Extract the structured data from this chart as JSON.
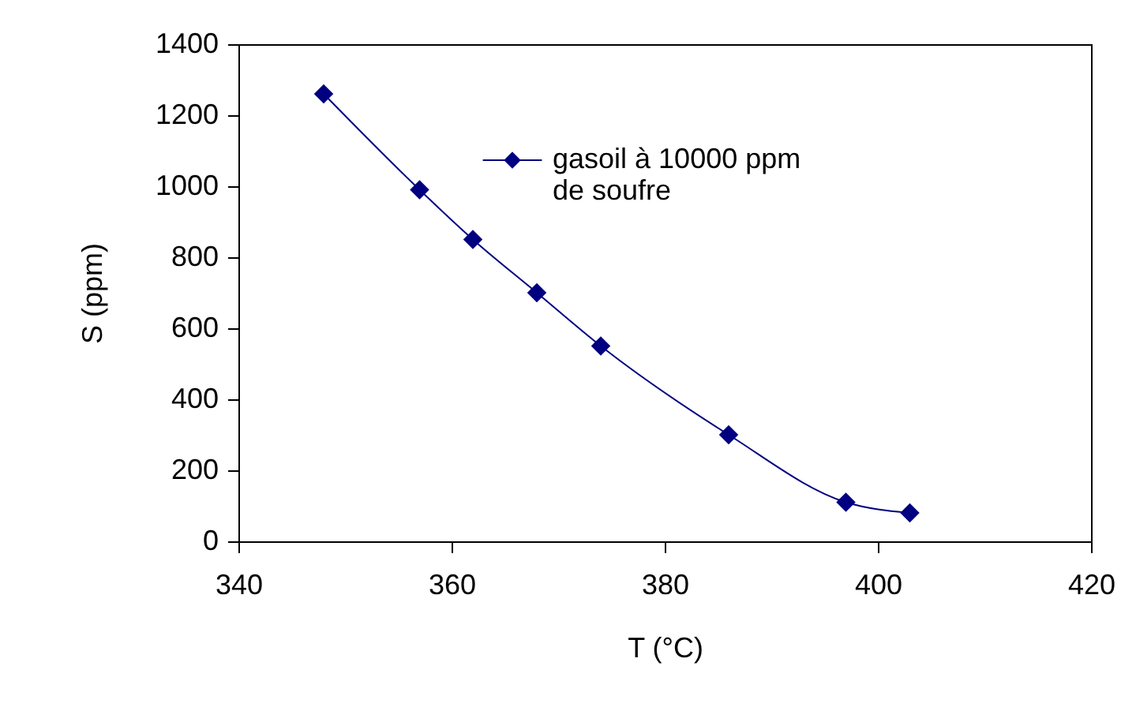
{
  "chart_data": {
    "type": "line",
    "xlabel": "T (°C)",
    "ylabel": "S (ppm)",
    "x": [
      348,
      357,
      362,
      368,
      374,
      386,
      397,
      403
    ],
    "series": [
      {
        "name": "gasoil à 10000 ppm de soufre",
        "color": "#000080",
        "values": [
          1260,
          990,
          850,
          700,
          550,
          300,
          110,
          80
        ]
      }
    ],
    "xlim": [
      340,
      420
    ],
    "xticks": [
      340,
      360,
      380,
      400,
      420
    ],
    "ylim": [
      0,
      1400
    ],
    "yticks": [
      0,
      200,
      400,
      600,
      800,
      1000,
      1200,
      1400
    ],
    "grid": false,
    "legend": "top right",
    "marker": "diamond",
    "line_style": "solid"
  }
}
